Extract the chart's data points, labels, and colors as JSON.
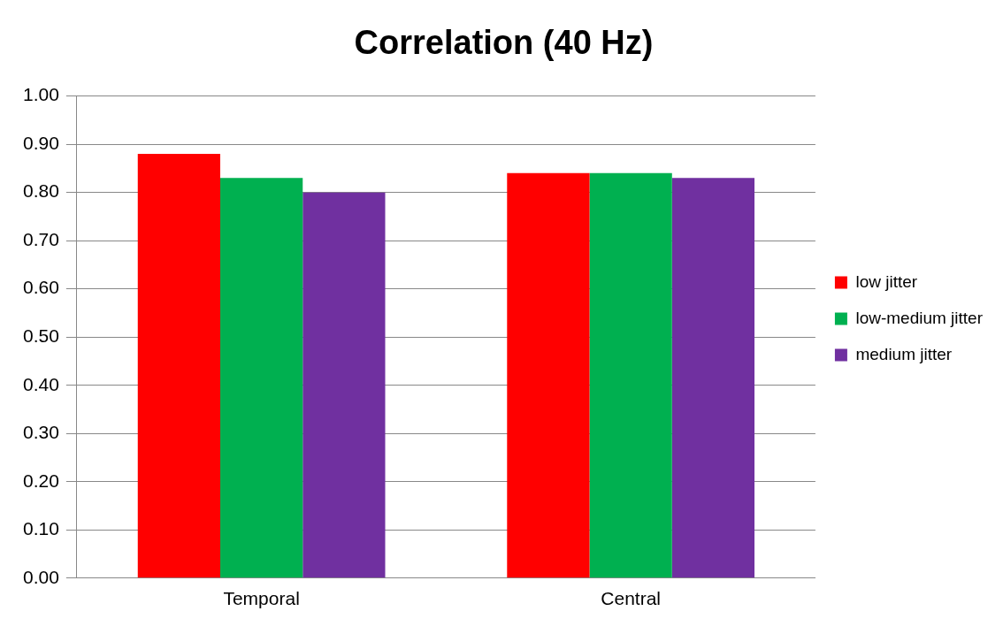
{
  "chart_data": {
    "type": "bar",
    "title": "Correlation (40 Hz)",
    "categories": [
      "Temporal",
      "Central"
    ],
    "series": [
      {
        "name": "low jitter",
        "color": "#ff0000",
        "values": [
          0.88,
          0.84
        ]
      },
      {
        "name": "low-medium jitter",
        "color": "#00b050",
        "values": [
          0.83,
          0.84
        ]
      },
      {
        "name": "medium jitter",
        "color": "#7030a0",
        "values": [
          0.8,
          0.83
        ]
      }
    ],
    "ylim": [
      0,
      1
    ],
    "yticks": [
      {
        "value": 0,
        "label": "0.00"
      },
      {
        "value": 0.1,
        "label": "0.10"
      },
      {
        "value": 0.2,
        "label": "0.20"
      },
      {
        "value": 0.3,
        "label": "0.30"
      },
      {
        "value": 0.4,
        "label": "0.40"
      },
      {
        "value": 0.5,
        "label": "0.50"
      },
      {
        "value": 0.6,
        "label": "0.60"
      },
      {
        "value": 0.7,
        "label": "0.70"
      },
      {
        "value": 0.8,
        "label": "0.80"
      },
      {
        "value": 0.9,
        "label": "0.90"
      },
      {
        "value": 1,
        "label": "1.00"
      }
    ],
    "grid": "y",
    "legend": "right"
  }
}
